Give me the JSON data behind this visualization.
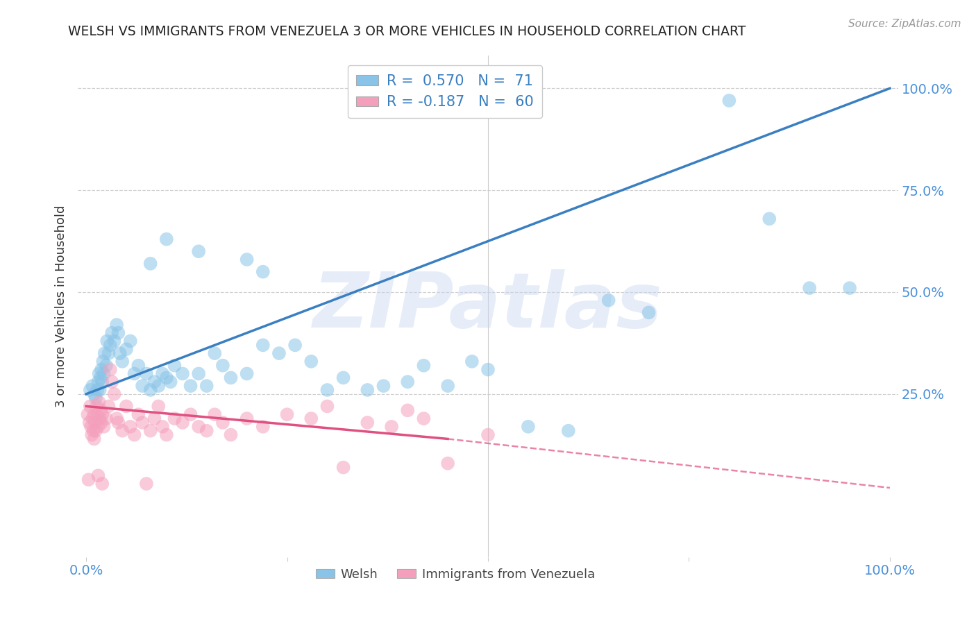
{
  "title": "WELSH VS IMMIGRANTS FROM VENEZUELA 3 OR MORE VEHICLES IN HOUSEHOLD CORRELATION CHART",
  "source": "Source: ZipAtlas.com",
  "ylabel": "3 or more Vehicles in Household",
  "ytick_labels": [
    "25.0%",
    "50.0%",
    "75.0%",
    "100.0%"
  ],
  "ytick_values": [
    25,
    50,
    75,
    100
  ],
  "right_ytick_labels": [
    "25.0%",
    "50.0%",
    "75.0%",
    "100.0%"
  ],
  "xlim": [
    0,
    100
  ],
  "ylim": [
    -15,
    108
  ],
  "watermark": "ZIPatlas",
  "background_color": "#ffffff",
  "grid_color": "#d0d0d0",
  "blue_color": "#89c4e8",
  "pink_color": "#f4a0bc",
  "blue_line_color": "#3a7fc1",
  "pink_line_color": "#e05080",
  "title_color": "#222222",
  "axis_color": "#4a90d9",
  "blue_line": {
    "x0": 0,
    "y0": 25,
    "x1": 100,
    "y1": 100
  },
  "pink_line_solid": {
    "x0": 0,
    "y0": 22,
    "x1": 45,
    "y1": 14
  },
  "pink_line_dash": {
    "x0": 45,
    "y0": 14,
    "x1": 100,
    "y1": 2
  },
  "blue_scatter": [
    [
      0.5,
      26
    ],
    [
      0.8,
      27
    ],
    [
      1.0,
      25
    ],
    [
      1.2,
      24
    ],
    [
      1.4,
      26
    ],
    [
      1.5,
      28
    ],
    [
      1.6,
      30
    ],
    [
      1.7,
      26
    ],
    [
      1.8,
      29
    ],
    [
      1.9,
      31
    ],
    [
      2.0,
      28
    ],
    [
      2.1,
      33
    ],
    [
      2.2,
      30
    ],
    [
      2.3,
      35
    ],
    [
      2.5,
      32
    ],
    [
      2.6,
      38
    ],
    [
      2.8,
      35
    ],
    [
      3.0,
      37
    ],
    [
      3.2,
      40
    ],
    [
      3.5,
      38
    ],
    [
      3.8,
      42
    ],
    [
      4.0,
      40
    ],
    [
      4.2,
      35
    ],
    [
      4.5,
      33
    ],
    [
      5.0,
      36
    ],
    [
      5.5,
      38
    ],
    [
      6.0,
      30
    ],
    [
      6.5,
      32
    ],
    [
      7.0,
      27
    ],
    [
      7.5,
      30
    ],
    [
      8.0,
      26
    ],
    [
      8.5,
      28
    ],
    [
      9.0,
      27
    ],
    [
      9.5,
      30
    ],
    [
      10.0,
      29
    ],
    [
      10.5,
      28
    ],
    [
      11.0,
      32
    ],
    [
      12.0,
      30
    ],
    [
      13.0,
      27
    ],
    [
      14.0,
      30
    ],
    [
      15.0,
      27
    ],
    [
      16.0,
      35
    ],
    [
      17.0,
      32
    ],
    [
      18.0,
      29
    ],
    [
      20.0,
      30
    ],
    [
      22.0,
      37
    ],
    [
      24.0,
      35
    ],
    [
      26.0,
      37
    ],
    [
      28.0,
      33
    ],
    [
      30.0,
      26
    ],
    [
      32.0,
      29
    ],
    [
      35.0,
      26
    ],
    [
      37.0,
      27
    ],
    [
      40.0,
      28
    ],
    [
      42.0,
      32
    ],
    [
      45.0,
      27
    ],
    [
      48.0,
      33
    ],
    [
      50.0,
      31
    ],
    [
      55.0,
      17
    ],
    [
      60.0,
      16
    ],
    [
      65.0,
      48
    ],
    [
      70.0,
      45
    ],
    [
      80.0,
      97
    ],
    [
      85.0,
      68
    ],
    [
      90.0,
      51
    ],
    [
      95.0,
      51
    ],
    [
      20.0,
      58
    ],
    [
      22.0,
      55
    ],
    [
      14.0,
      60
    ],
    [
      10.0,
      63
    ],
    [
      8.0,
      57
    ]
  ],
  "pink_scatter": [
    [
      0.2,
      20
    ],
    [
      0.4,
      18
    ],
    [
      0.5,
      22
    ],
    [
      0.6,
      17
    ],
    [
      0.7,
      15
    ],
    [
      0.8,
      19
    ],
    [
      0.9,
      16
    ],
    [
      1.0,
      14
    ],
    [
      1.0,
      20
    ],
    [
      1.1,
      18
    ],
    [
      1.2,
      16
    ],
    [
      1.3,
      22
    ],
    [
      1.4,
      20
    ],
    [
      1.5,
      17
    ],
    [
      1.6,
      23
    ],
    [
      1.7,
      19
    ],
    [
      1.8,
      21
    ],
    [
      1.9,
      18
    ],
    [
      2.0,
      20
    ],
    [
      2.2,
      17
    ],
    [
      2.5,
      19
    ],
    [
      2.8,
      22
    ],
    [
      3.0,
      31
    ],
    [
      3.2,
      28
    ],
    [
      3.5,
      25
    ],
    [
      3.8,
      19
    ],
    [
      4.0,
      18
    ],
    [
      4.5,
      16
    ],
    [
      5.0,
      22
    ],
    [
      5.5,
      17
    ],
    [
      6.0,
      15
    ],
    [
      6.5,
      20
    ],
    [
      7.0,
      18
    ],
    [
      7.5,
      3
    ],
    [
      8.0,
      16
    ],
    [
      8.5,
      19
    ],
    [
      9.0,
      22
    ],
    [
      9.5,
      17
    ],
    [
      10.0,
      15
    ],
    [
      11.0,
      19
    ],
    [
      12.0,
      18
    ],
    [
      13.0,
      20
    ],
    [
      14.0,
      17
    ],
    [
      15.0,
      16
    ],
    [
      16.0,
      20
    ],
    [
      17.0,
      18
    ],
    [
      18.0,
      15
    ],
    [
      20.0,
      19
    ],
    [
      22.0,
      17
    ],
    [
      25.0,
      20
    ],
    [
      28.0,
      19
    ],
    [
      30.0,
      22
    ],
    [
      32.0,
      7
    ],
    [
      35.0,
      18
    ],
    [
      38.0,
      17
    ],
    [
      40.0,
      21
    ],
    [
      42.0,
      19
    ],
    [
      45.0,
      8
    ],
    [
      50.0,
      15
    ],
    [
      0.3,
      4
    ],
    [
      1.5,
      5
    ],
    [
      2.0,
      3
    ]
  ]
}
